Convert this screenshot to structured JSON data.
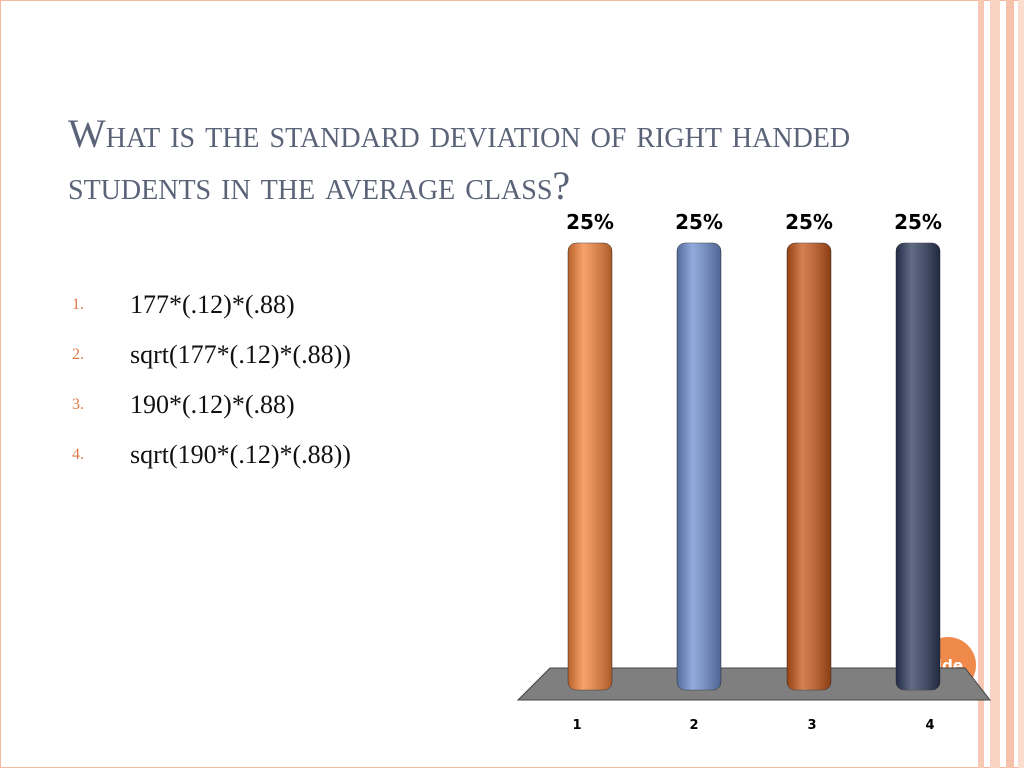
{
  "title": "What is the standard deviation of right handed students in the average class?",
  "items": [
    "177*(.12)*(.88)",
    "sqrt(177*(.12)*(.88))",
    "190*(.12)*(.88)",
    "sqrt(190*(.12)*(.88))"
  ],
  "badge": "ide",
  "chart_data": {
    "type": "bar",
    "categories": [
      "1",
      "2",
      "3",
      "4"
    ],
    "values": [
      25,
      25,
      25,
      25
    ],
    "value_labels": [
      "25%",
      "25%",
      "25%",
      "25%"
    ],
    "colors": [
      "#f5823a",
      "#6f8fd0",
      "#c8571b",
      "#2e3a5c"
    ]
  }
}
